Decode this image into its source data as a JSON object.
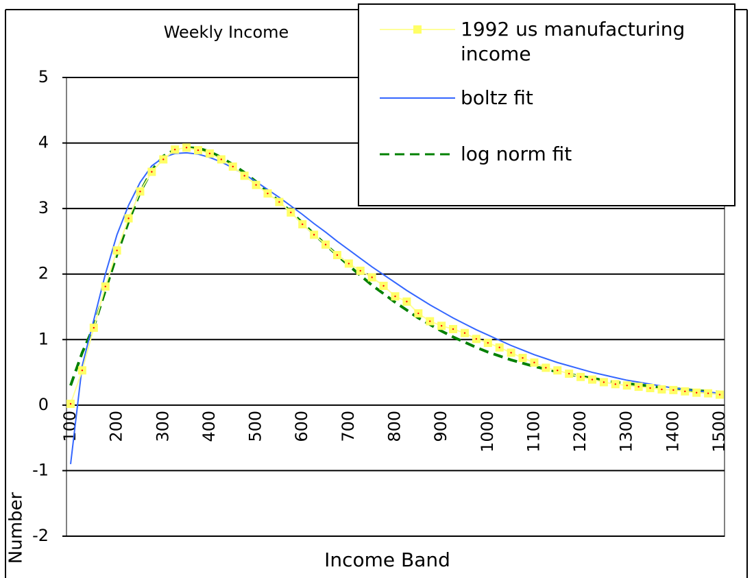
{
  "chart_data": {
    "type": "line",
    "title": "Weekly Income",
    "x_label": "Income Band",
    "y_label": "Number",
    "categories": [
      100,
      null,
      null,
      null,
      200,
      null,
      null,
      null,
      300,
      null,
      null,
      null,
      400,
      null,
      null,
      null,
      500,
      null,
      null,
      null,
      600,
      null,
      null,
      null,
      700,
      null,
      null,
      null,
      800,
      null,
      null,
      null,
      900,
      null,
      null,
      null,
      1000,
      null,
      null,
      null,
      1100,
      null,
      null,
      null,
      1200,
      null,
      null,
      null,
      1300,
      null,
      null,
      null,
      1400,
      null,
      null,
      null,
      1500
    ],
    "ylim": [
      -2,
      5
    ],
    "yticks": [
      -2,
      -1,
      0,
      1,
      2,
      3,
      4,
      5
    ],
    "grid": true,
    "legend": "top-right",
    "series": [
      {
        "name": "1992 us manufacturing income",
        "color": "#ffff99",
        "marker": "square",
        "marker_color": "#ffff66",
        "values": [
          0.02,
          0.53,
          1.18,
          1.81,
          2.36,
          2.85,
          3.26,
          3.56,
          3.75,
          3.9,
          3.93,
          3.89,
          3.84,
          3.75,
          3.64,
          3.5,
          3.36,
          3.23,
          3.1,
          2.94,
          2.76,
          2.6,
          2.45,
          2.29,
          2.16,
          2.05,
          1.95,
          1.82,
          1.66,
          1.58,
          1.4,
          1.28,
          1.21,
          1.16,
          1.1,
          1.01,
          0.95,
          0.88,
          0.8,
          0.72,
          0.65,
          0.57,
          0.53,
          0.48,
          0.43,
          0.39,
          0.35,
          0.32,
          0.3,
          0.28,
          0.26,
          0.24,
          0.23,
          0.21,
          0.19,
          0.18,
          0.16
        ]
      },
      {
        "name": "boltz fit",
        "color": "#3366ff",
        "values": [
          -0.9,
          0.6,
          1.3,
          2.0,
          2.6,
          3.05,
          3.4,
          3.65,
          3.78,
          3.84,
          3.85,
          3.83,
          3.78,
          3.71,
          3.62,
          3.52,
          3.41,
          3.29,
          3.17,
          3.04,
          2.91,
          2.77,
          2.64,
          2.5,
          2.37,
          2.24,
          2.11,
          1.99,
          1.87,
          1.75,
          1.64,
          1.53,
          1.43,
          1.33,
          1.24,
          1.15,
          1.07,
          0.99,
          0.91,
          0.84,
          0.77,
          0.71,
          0.65,
          0.6,
          0.55,
          0.5,
          0.46,
          0.42,
          0.38,
          0.35,
          0.32,
          0.29,
          0.26,
          0.24,
          0.22,
          0.2,
          0.18
        ]
      },
      {
        "name": "log norm fit",
        "color": "#008000",
        "dash": true,
        "values": [
          0.3,
          0.8,
          1.2,
          1.75,
          2.3,
          2.8,
          3.25,
          3.58,
          3.8,
          3.9,
          3.93,
          3.92,
          3.87,
          3.78,
          3.67,
          3.55,
          3.41,
          3.26,
          3.11,
          2.95,
          2.78,
          2.61,
          2.45,
          2.29,
          2.13,
          1.98,
          1.83,
          1.7,
          1.57,
          1.45,
          1.33,
          1.23,
          1.13,
          1.04,
          0.96,
          0.88,
          0.81,
          0.75,
          0.69,
          0.64,
          0.59,
          0.55,
          0.51,
          0.47,
          0.44,
          0.41,
          0.38,
          0.35,
          0.33,
          0.31,
          0.29,
          0.27,
          0.25,
          0.24,
          0.22,
          0.21,
          0.2
        ]
      }
    ]
  }
}
